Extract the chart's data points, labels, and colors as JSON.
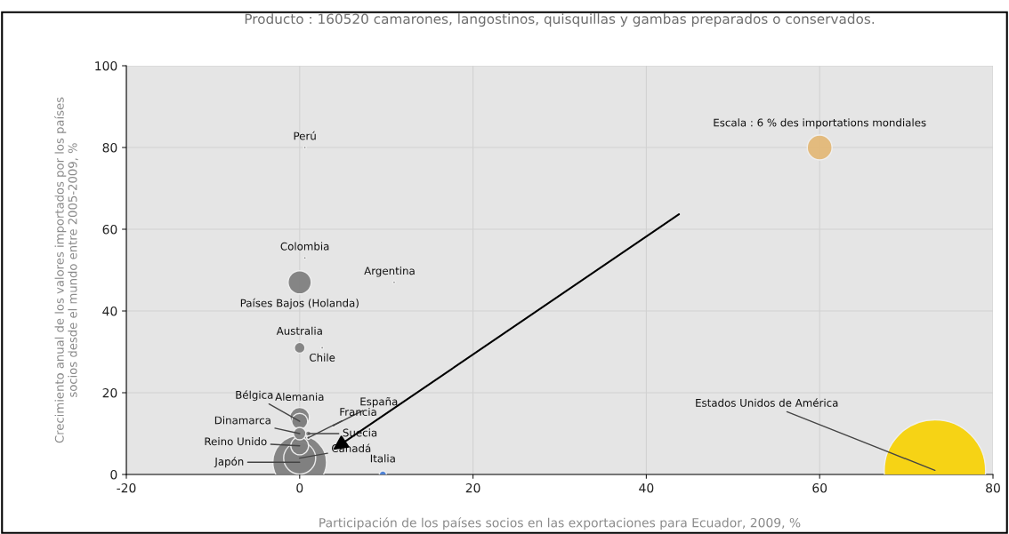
{
  "chart_data": {
    "type": "bubble",
    "title": "Producto : 160520 camarones, langostinos, quisquillas y gambas preparados o conservados.",
    "xlabel": "Participación de los países socios en las exportaciones para Ecuador, 2009, %",
    "ylabel": "Crecimiento anual de los valores importados por los países\nsocios desde el mundo entre 2005-2009, %",
    "x": [
      0.6,
      0.6,
      10.9,
      0,
      0,
      2.6,
      0,
      0,
      3.9,
      1,
      1,
      0,
      0,
      0,
      0,
      9.6,
      73.3,
      60
    ],
    "values": [
      80,
      53,
      47,
      47,
      31,
      31,
      13,
      14,
      12,
      9,
      10,
      10,
      7,
      4,
      3,
      0,
      1,
      80
    ],
    "sizes": [
      0.0007,
      0.0007,
      0.0007,
      0.052,
      0.011,
      0.0007,
      0.025,
      0.037,
      0.0012,
      0.0012,
      0.0028,
      0.015,
      0.031,
      0.1,
      0.28,
      0.0049,
      1,
      0.06
    ],
    "colors": [
      "#808080",
      "#808080",
      "#808080",
      "#808080",
      "#808080",
      "#808080",
      "#808080",
      "#808080",
      "#808080",
      "#808080",
      "#808080",
      "#808080",
      "#808080",
      "#808080",
      "#808080",
      "#4a7fd6",
      "#f7d20a",
      "#e3b878"
    ],
    "annotations": [
      {
        "text": "Perú",
        "x": 0.6,
        "y": 80
      },
      {
        "text": "Colombia",
        "x": 0.6,
        "y": 53
      },
      {
        "text": "Argentina",
        "x": 10.9,
        "y": 47
      },
      {
        "text": "Países Bajos (Holanda)",
        "x": 0,
        "y": 47
      },
      {
        "text": "Australia",
        "x": 0,
        "y": 31
      },
      {
        "text": "Chile",
        "x": 2.6,
        "y": 31
      },
      {
        "text": "Bélgica",
        "x": 0,
        "y": 13
      },
      {
        "text": "Alemania",
        "x": 0,
        "y": 14
      },
      {
        "text": "España",
        "x": 3.9,
        "y": 12
      },
      {
        "text": "Francia",
        "x": 1,
        "y": 9
      },
      {
        "text": "Suecia",
        "x": 1,
        "y": 10
      },
      {
        "text": "Dinamarca",
        "x": 0,
        "y": 10
      },
      {
        "text": "Reino Unido",
        "x": 0,
        "y": 7
      },
      {
        "text": "Canadá",
        "x": 0,
        "y": 4
      },
      {
        "text": "Japón",
        "x": 0,
        "y": 3
      },
      {
        "text": "Italia",
        "x": 9.6,
        "y": 0
      },
      {
        "text": "Estados Unidos de América",
        "x": 73.3,
        "y": 1
      },
      {
        "text": "Escala : 6 % des importations mondiales",
        "x": 60,
        "y": 80
      }
    ],
    "xlim": [
      -20,
      80
    ],
    "ylim": [
      0,
      100
    ],
    "xticks": [
      -20,
      0,
      20,
      40,
      60,
      80
    ],
    "yticks": [
      0,
      20,
      40,
      60,
      80,
      100
    ],
    "grid": true
  }
}
